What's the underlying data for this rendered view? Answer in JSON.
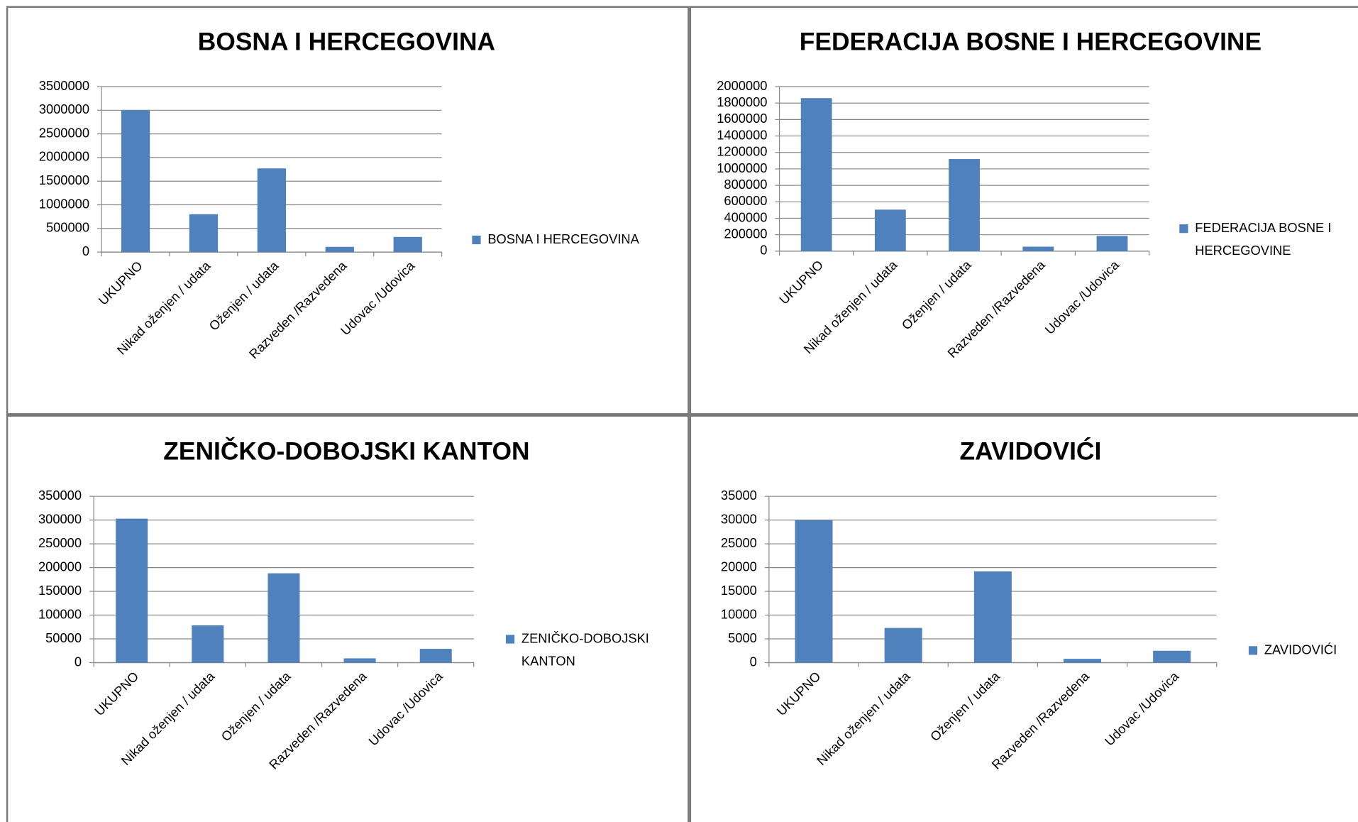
{
  "chart_data": [
    {
      "type": "bar",
      "title": "BOSNA I HERCEGOVINA",
      "categories": [
        "UKUPNO",
        "Nikad oženjen / udata",
        "Oženjen / udata",
        "Razveden /Razvedena",
        "Udovac /Udovica"
      ],
      "series": [
        {
          "name": "BOSNA I HERCEGOVINA",
          "color": "#4f81bd",
          "values": [
            3000000,
            800000,
            1770000,
            110000,
            320000
          ]
        }
      ],
      "ylim": [
        0,
        3500000
      ],
      "yticks": [
        0,
        500000,
        1000000,
        1500000,
        2000000,
        2500000,
        3000000,
        3500000
      ],
      "grid": true
    },
    {
      "type": "bar",
      "title": "FEDERACIJA BOSNE I HERCEGOVINE",
      "categories": [
        "UKUPNO",
        "Nikad oženjen / udata",
        "Oženjen / udata",
        "Razveden /Razvedena",
        "Udovac /Udovica"
      ],
      "series": [
        {
          "name": "FEDERACIJA BOSNE I HERCEGOVINE",
          "color": "#4f81bd",
          "values": [
            1860000,
            505000,
            1120000,
            55000,
            185000
          ]
        }
      ],
      "ylim": [
        0,
        2000000
      ],
      "yticks": [
        0,
        200000,
        400000,
        600000,
        800000,
        1000000,
        1200000,
        1400000,
        1600000,
        1800000,
        2000000
      ],
      "grid": true
    },
    {
      "type": "bar",
      "title": "ZENIČKO-DOBOJSKI KANTON",
      "categories": [
        "UKUPNO",
        "Nikad oženjen / udata",
        "Oženjen / udata",
        "Razveden /Razvedena",
        "Udovac /Udovica"
      ],
      "series": [
        {
          "name": "ZENIČKO-DOBOJSKI KANTON",
          "color": "#4f81bd",
          "values": [
            303000,
            78500,
            188000,
            9000,
            29000
          ]
        }
      ],
      "ylim": [
        0,
        350000
      ],
      "yticks": [
        0,
        50000,
        100000,
        150000,
        200000,
        250000,
        300000,
        350000
      ],
      "grid": true
    },
    {
      "type": "bar",
      "title": "ZAVIDOVIĆI",
      "categories": [
        "UKUPNO",
        "Nikad oženjen / udata",
        "Oženjen / udata",
        "Razveden /Razvedena",
        "Udovac /Udovica"
      ],
      "series": [
        {
          "name": "ZAVIDOVIĆI",
          "color": "#4f81bd",
          "values": [
            30000,
            7300,
            19200,
            800,
            2500
          ]
        }
      ],
      "ylim": [
        0,
        35000
      ],
      "yticks": [
        0,
        5000,
        10000,
        15000,
        20000,
        25000,
        30000,
        35000
      ],
      "grid": true
    }
  ]
}
